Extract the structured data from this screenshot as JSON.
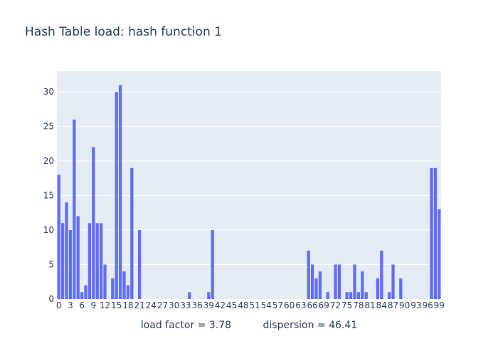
{
  "chart_data": {
    "type": "bar",
    "title": "Hash Table load: hash function 1",
    "xlabel": "load factor = 3.78          dispersion = 46.41",
    "ylabel": "",
    "xlim": [
      0,
      99
    ],
    "ylim": [
      0,
      33
    ],
    "grid": true,
    "legend": "none",
    "bar_color": "#636efa",
    "plot_bg_color": "#e5ecf6",
    "text_color": "#2a3f5f",
    "x_tick_labels": [
      "0",
      "3",
      "6",
      "9",
      "12",
      "15",
      "18",
      "21",
      "24",
      "27",
      "30",
      "33",
      "36",
      "39",
      "42",
      "45",
      "48",
      "51",
      "54",
      "57",
      "60",
      "63",
      "66",
      "69",
      "72",
      "75",
      "78",
      "81",
      "84",
      "87",
      "90",
      "93",
      "96",
      "99"
    ],
    "y_tick_labels": [
      "0",
      "5",
      "10",
      "15",
      "20",
      "25",
      "30"
    ],
    "x": [
      0,
      1,
      2,
      3,
      4,
      5,
      6,
      7,
      8,
      9,
      10,
      11,
      12,
      13,
      14,
      15,
      16,
      17,
      18,
      19,
      20,
      21,
      22,
      23,
      24,
      25,
      26,
      27,
      28,
      29,
      30,
      31,
      32,
      33,
      34,
      35,
      36,
      37,
      38,
      39,
      40,
      41,
      42,
      43,
      44,
      45,
      46,
      47,
      48,
      49,
      50,
      51,
      52,
      53,
      54,
      55,
      56,
      57,
      58,
      59,
      60,
      61,
      62,
      63,
      64,
      65,
      66,
      67,
      68,
      69,
      70,
      71,
      72,
      73,
      74,
      75,
      76,
      77,
      78,
      79,
      80,
      81,
      82,
      83,
      84,
      85,
      86,
      87,
      88,
      89,
      90,
      91,
      92,
      93,
      94,
      95,
      96,
      97,
      98,
      99
    ],
    "values": [
      18,
      11,
      14,
      10,
      26,
      12,
      1,
      2,
      11,
      22,
      11,
      11,
      5,
      0,
      3,
      30,
      31,
      4,
      2,
      19,
      0,
      10,
      0,
      0,
      0,
      0,
      0,
      0,
      0,
      0,
      0,
      0,
      0,
      0,
      1,
      0,
      0,
      0,
      0,
      1,
      10,
      0,
      0,
      0,
      0,
      0,
      0,
      0,
      0,
      0,
      0,
      0,
      0,
      0,
      0,
      0,
      0,
      0,
      0,
      0,
      0,
      0,
      0,
      0,
      0,
      7,
      5,
      3,
      4,
      0,
      1,
      0,
      5,
      5,
      0,
      1,
      1,
      5,
      1,
      4,
      1,
      0,
      0,
      3,
      7,
      0,
      1,
      5,
      0,
      3,
      0,
      0,
      0,
      0,
      0,
      0,
      0,
      19,
      19,
      13
    ]
  }
}
